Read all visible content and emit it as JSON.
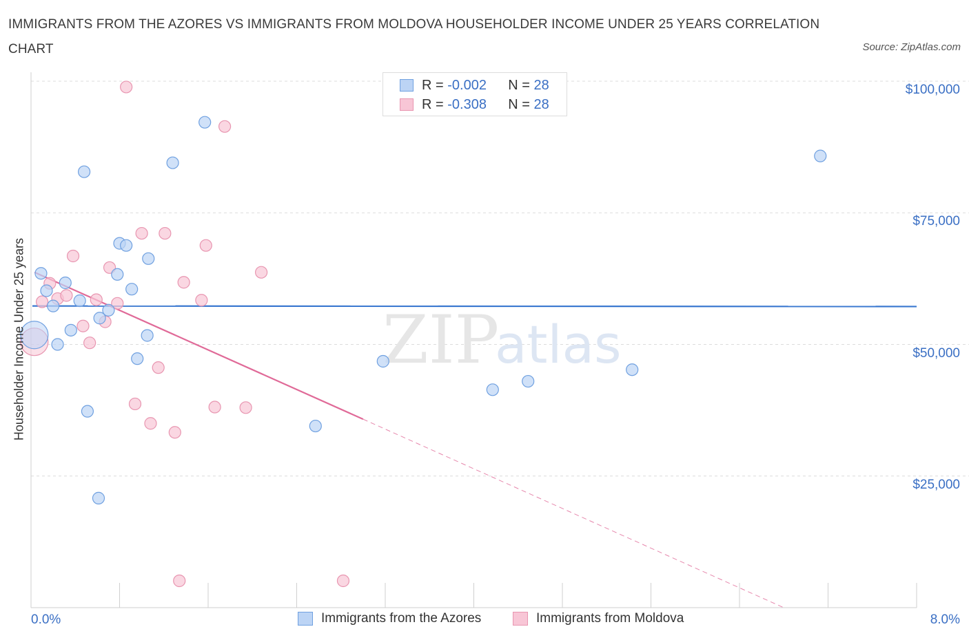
{
  "header": {
    "title": "IMMIGRANTS FROM THE AZORES VS IMMIGRANTS FROM MOLDOVA HOUSEHOLDER INCOME UNDER 25 YEARS CORRELATION CHART",
    "source": "Source: ZipAtlas.com"
  },
  "legend": {
    "r_label": "R =",
    "n_label": "N =",
    "azores": {
      "r": "-0.002",
      "n": "28"
    },
    "moldova": {
      "r": "-0.308",
      "n": "28"
    }
  },
  "colors": {
    "azores_fill": "#bcd4f5",
    "azores_stroke": "#6fa0e0",
    "azores_line": "#3a78d0",
    "moldova_fill": "#f8c6d6",
    "moldova_stroke": "#e895b0",
    "moldova_line": "#e06a98",
    "grid": "#dcdcdc",
    "axis_text": "#3a6fc4"
  },
  "chart_data": {
    "type": "scatter",
    "title": "IMMIGRANTS FROM THE AZORES VS IMMIGRANTS FROM MOLDOVA HOUSEHOLDER INCOME UNDER 25 YEARS CORRELATION CHART",
    "xlabel": "",
    "ylabel": "Householder Income Under 25 years",
    "xlim": [
      0,
      8
    ],
    "ylim": [
      0,
      100000
    ],
    "x_tick_labels": [
      "0.0%",
      "8.0%"
    ],
    "y_ticks": [
      {
        "value": 25000,
        "label": "$25,000"
      },
      {
        "value": 50000,
        "label": "$50,000"
      },
      {
        "value": 75000,
        "label": "$75,000"
      },
      {
        "value": 100000,
        "label": "$100,000"
      }
    ],
    "grid": true,
    "watermark": "ZIPatlas",
    "series": [
      {
        "name": "Immigrants from the Azores",
        "color": "#6fa0e0",
        "trend": {
          "x": [
            0.0,
            8.0
          ],
          "y": [
            57300,
            57200
          ],
          "style": "solid"
        },
        "points": [
          {
            "x": 0.03,
            "y": 51800
          },
          {
            "x": 0.09,
            "y": 63500
          },
          {
            "x": 0.14,
            "y": 60200
          },
          {
            "x": 0.2,
            "y": 57300
          },
          {
            "x": 0.24,
            "y": 50000
          },
          {
            "x": 0.31,
            "y": 61700
          },
          {
            "x": 0.36,
            "y": 52700
          },
          {
            "x": 0.44,
            "y": 58300
          },
          {
            "x": 0.48,
            "y": 82800
          },
          {
            "x": 0.51,
            "y": 37300
          },
          {
            "x": 0.61,
            "y": 20800
          },
          {
            "x": 0.62,
            "y": 55000
          },
          {
            "x": 0.7,
            "y": 56500
          },
          {
            "x": 0.78,
            "y": 63300
          },
          {
            "x": 0.8,
            "y": 69200
          },
          {
            "x": 0.86,
            "y": 68800
          },
          {
            "x": 0.91,
            "y": 60500
          },
          {
            "x": 0.96,
            "y": 47300
          },
          {
            "x": 1.05,
            "y": 51700
          },
          {
            "x": 1.06,
            "y": 66300
          },
          {
            "x": 1.28,
            "y": 84500
          },
          {
            "x": 1.57,
            "y": 92200
          },
          {
            "x": 2.57,
            "y": 34500
          },
          {
            "x": 3.18,
            "y": 46800
          },
          {
            "x": 4.17,
            "y": 41400
          },
          {
            "x": 4.49,
            "y": 43000
          },
          {
            "x": 5.43,
            "y": 45200
          },
          {
            "x": 7.13,
            "y": 85800
          }
        ]
      },
      {
        "name": "Immigrants from Moldova",
        "color": "#e895b0",
        "trend": {
          "x": [
            0.02,
            3.0,
            6.8
          ],
          "y": [
            63700,
            35800,
            0
          ],
          "style": "solid-then-dashed"
        },
        "points": [
          {
            "x": 0.03,
            "y": 50500
          },
          {
            "x": 0.1,
            "y": 58100
          },
          {
            "x": 0.17,
            "y": 61600
          },
          {
            "x": 0.24,
            "y": 58700
          },
          {
            "x": 0.32,
            "y": 59300
          },
          {
            "x": 0.38,
            "y": 66800
          },
          {
            "x": 0.47,
            "y": 53500
          },
          {
            "x": 0.53,
            "y": 50300
          },
          {
            "x": 0.59,
            "y": 58500
          },
          {
            "x": 0.67,
            "y": 54300
          },
          {
            "x": 0.71,
            "y": 64600
          },
          {
            "x": 0.78,
            "y": 57800
          },
          {
            "x": 0.86,
            "y": 98900
          },
          {
            "x": 0.94,
            "y": 38700
          },
          {
            "x": 1.0,
            "y": 71100
          },
          {
            "x": 1.08,
            "y": 35000
          },
          {
            "x": 1.15,
            "y": 45600
          },
          {
            "x": 1.21,
            "y": 71100
          },
          {
            "x": 1.3,
            "y": 33300
          },
          {
            "x": 1.34,
            "y": 5100
          },
          {
            "x": 1.38,
            "y": 61800
          },
          {
            "x": 1.54,
            "y": 58400
          },
          {
            "x": 1.58,
            "y": 68800
          },
          {
            "x": 1.66,
            "y": 38100
          },
          {
            "x": 1.75,
            "y": 91400
          },
          {
            "x": 1.94,
            "y": 38000
          },
          {
            "x": 2.08,
            "y": 63700
          },
          {
            "x": 2.82,
            "y": 5100
          }
        ]
      }
    ]
  },
  "bottom_legend": {
    "azores_label": "Immigrants from the Azores",
    "moldova_label": "Immigrants from Moldova"
  }
}
